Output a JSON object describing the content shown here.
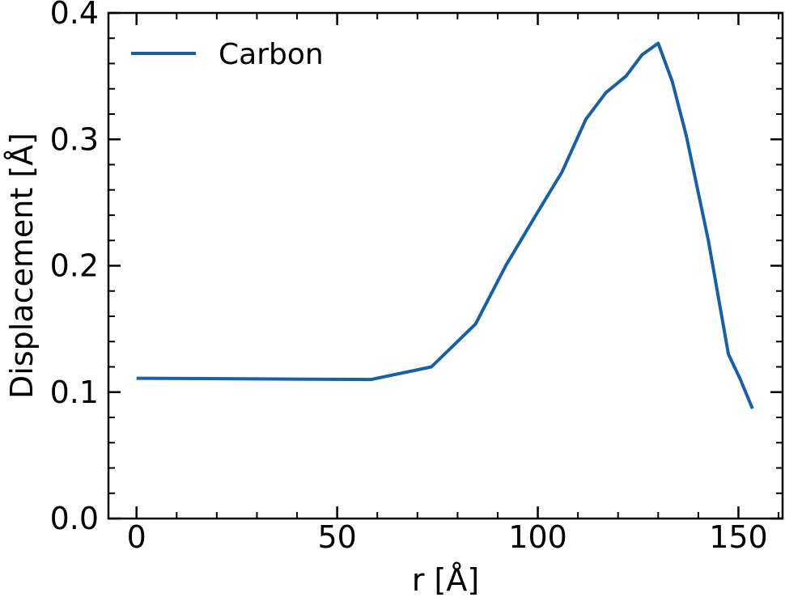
{
  "chart_data": {
    "type": "line",
    "xlabel": "r [Å]",
    "ylabel": "Displacement [Å]",
    "xlim": [
      -7,
      161
    ],
    "ylim": [
      0.0,
      0.4
    ],
    "xticks": [
      0,
      50,
      100,
      150
    ],
    "xtick_labels": [
      "0",
      "50",
      "100",
      "150"
    ],
    "yticks": [
      0.0,
      0.1,
      0.2,
      0.3,
      0.4
    ],
    "ytick_labels": [
      "0.0",
      "0.1",
      "0.2",
      "0.3",
      "0.4"
    ],
    "x_minor_step": 10,
    "y_minor_step": 0.02,
    "grid": false,
    "legend_position": "top-left",
    "series": [
      {
        "name": "Carbon",
        "color": "#1560a8",
        "x": [
          0,
          58.5,
          73.5,
          84.5,
          92,
          99.5,
          106,
          112,
          117,
          122,
          126,
          130,
          133.5,
          137,
          142.5,
          147.5,
          150.5,
          153.5
        ],
        "y": [
          0.111,
          0.11,
          0.12,
          0.154,
          0.2,
          0.24,
          0.274,
          0.316,
          0.337,
          0.35,
          0.367,
          0.376,
          0.346,
          0.303,
          0.22,
          0.13,
          0.11,
          0.087
        ]
      }
    ]
  }
}
